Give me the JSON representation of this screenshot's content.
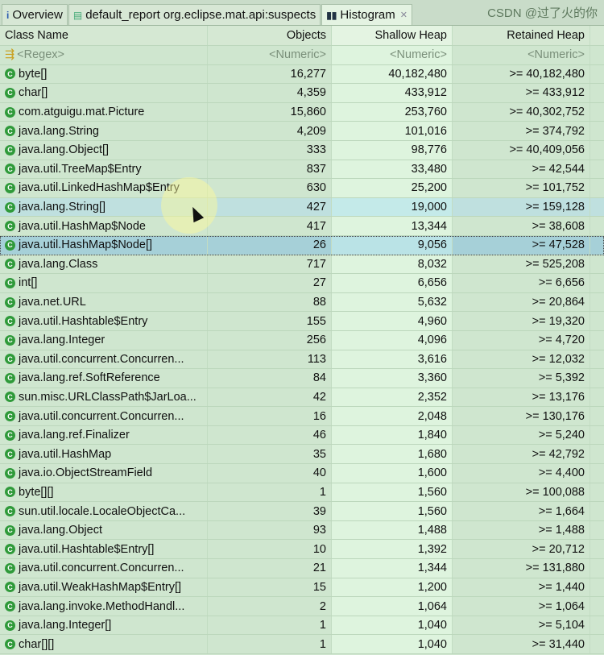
{
  "tabs": [
    {
      "label": "Overview",
      "icon": "info-icon"
    },
    {
      "label": "default_report  org.eclipse.mat.api:suspects",
      "icon": "report-icon"
    },
    {
      "label": "Histogram",
      "icon": "histogram-icon",
      "active": true
    }
  ],
  "columns": [
    "Class Name",
    "Objects",
    "Shallow Heap",
    "Retained Heap"
  ],
  "filters": [
    "<Regex>",
    "<Numeric>",
    "<Numeric>",
    "<Numeric>"
  ],
  "rows": [
    [
      "byte[]",
      "16,277",
      "40,182,480",
      ">= 40,182,480"
    ],
    [
      "char[]",
      "4,359",
      "433,912",
      ">= 433,912"
    ],
    [
      "com.atguigu.mat.Picture",
      "15,860",
      "253,760",
      ">= 40,302,752"
    ],
    [
      "java.lang.String",
      "4,209",
      "101,016",
      ">= 374,792"
    ],
    [
      "java.lang.Object[]",
      "333",
      "98,776",
      ">= 40,409,056"
    ],
    [
      "java.util.TreeMap$Entry",
      "837",
      "33,480",
      ">= 42,544"
    ],
    [
      "java.util.LinkedHashMap$Entry",
      "630",
      "25,200",
      ">= 101,752"
    ],
    [
      "java.lang.String[]",
      "427",
      "19,000",
      ">= 159,128"
    ],
    [
      "java.util.HashMap$Node",
      "417",
      "13,344",
      ">= 38,608"
    ],
    [
      "java.util.HashMap$Node[]",
      "26",
      "9,056",
      ">= 47,528"
    ],
    [
      "java.lang.Class",
      "717",
      "8,032",
      ">= 525,208"
    ],
    [
      "int[]",
      "27",
      "6,656",
      ">= 6,656"
    ],
    [
      "java.net.URL",
      "88",
      "5,632",
      ">= 20,864"
    ],
    [
      "java.util.Hashtable$Entry",
      "155",
      "4,960",
      ">= 19,320"
    ],
    [
      "java.lang.Integer",
      "256",
      "4,096",
      ">= 4,720"
    ],
    [
      "java.util.concurrent.Concurren...",
      "113",
      "3,616",
      ">= 12,032"
    ],
    [
      "java.lang.ref.SoftReference",
      "84",
      "3,360",
      ">= 5,392"
    ],
    [
      "sun.misc.URLClassPath$JarLoa...",
      "42",
      "2,352",
      ">= 13,176"
    ],
    [
      "java.util.concurrent.Concurren...",
      "16",
      "2,048",
      ">= 130,176"
    ],
    [
      "java.lang.ref.Finalizer",
      "46",
      "1,840",
      ">= 5,240"
    ],
    [
      "java.util.HashMap",
      "35",
      "1,680",
      ">= 42,792"
    ],
    [
      "java.io.ObjectStreamField",
      "40",
      "1,600",
      ">= 4,400"
    ],
    [
      "byte[][]",
      "1",
      "1,560",
      ">= 100,088"
    ],
    [
      "sun.util.locale.LocaleObjectCa...",
      "39",
      "1,560",
      ">= 1,664"
    ],
    [
      "java.lang.Object",
      "93",
      "1,488",
      ">= 1,488"
    ],
    [
      "java.util.Hashtable$Entry[]",
      "10",
      "1,392",
      ">= 20,712"
    ],
    [
      "java.util.concurrent.Concurren...",
      "21",
      "1,344",
      ">= 131,880"
    ],
    [
      "java.util.WeakHashMap$Entry[]",
      "15",
      "1,200",
      ">= 1,440"
    ],
    [
      "java.lang.invoke.MethodHandl...",
      "2",
      "1,064",
      ">= 1,064"
    ],
    [
      "java.lang.Integer[]",
      "1",
      "1,040",
      ">= 5,104"
    ],
    [
      "char[][]",
      "1",
      "1,040",
      ">= 31,440"
    ]
  ],
  "hovered_row": 7,
  "selected_row": 9,
  "watermark": "CSDN @过了火的你"
}
